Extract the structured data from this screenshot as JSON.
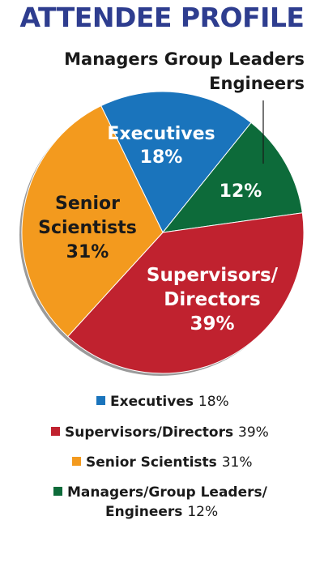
{
  "title": "ATTENDEE PROFILE",
  "callout": {
    "line1": "Managers Group Leaders",
    "line2": "Engineers"
  },
  "colors": {
    "executives": "#1a74bc",
    "managers": "#0d6b3a",
    "supervisors": "#c0222f",
    "senior_scientists": "#f39a1e",
    "title": "#2e3d8f"
  },
  "chart_data": {
    "type": "pie",
    "title": "ATTENDEE PROFILE",
    "slices": [
      {
        "key": "executives",
        "value": 18,
        "label_lines": [
          "Executives",
          "18%"
        ]
      },
      {
        "key": "managers",
        "value": 12,
        "label_lines": [
          "12%"
        ]
      },
      {
        "key": "supervisors",
        "value": 39,
        "label_lines": [
          "Supervisors/",
          "Directors",
          "39%"
        ]
      },
      {
        "key": "senior_scientists",
        "value": 31,
        "label_lines": [
          "Senior",
          "Scientists",
          "31%"
        ]
      }
    ]
  },
  "legend": [
    {
      "key": "executives",
      "name": "Executives",
      "pct": "18%"
    },
    {
      "key": "supervisors",
      "name": "Supervisors/Directors",
      "pct": "39%"
    },
    {
      "key": "senior_scientists",
      "name": "Senior Scientists",
      "pct": "31%"
    },
    {
      "key": "managers",
      "name_line1": "Managers/Group Leaders/",
      "name_line2": "Engineers",
      "pct": "12%"
    }
  ]
}
